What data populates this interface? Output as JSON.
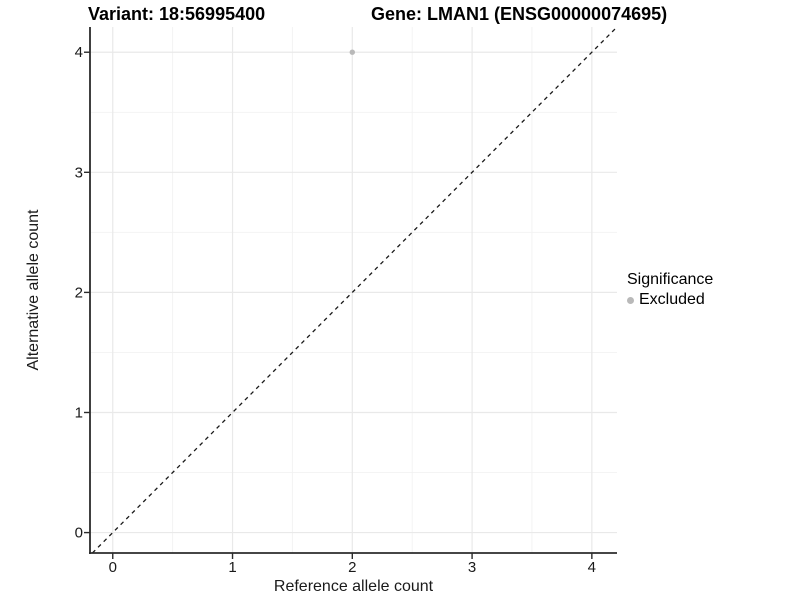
{
  "chart_data": {
    "type": "scatter",
    "title_left": "Variant: 18:56995400",
    "title_right": "Gene: LMAN1 (ENSG00000074695)",
    "xlabel": "Reference allele count",
    "ylabel": "Alternative allele count",
    "xlim": [
      -0.19,
      4.21
    ],
    "ylim": [
      -0.17,
      4.21
    ],
    "x_ticks": [
      0,
      1,
      2,
      3,
      4
    ],
    "y_ticks": [
      0,
      1,
      2,
      3,
      4
    ],
    "x_minor_ticks": [
      0.5,
      1.5,
      2.5,
      3.5
    ],
    "y_minor_ticks": [
      0.5,
      1.5,
      2.5,
      3.5
    ],
    "grid": true,
    "points": [
      {
        "x": 2,
        "y": 4,
        "significance": "Excluded"
      }
    ],
    "identity_line": {
      "slope": 1,
      "intercept": 0,
      "style": "dashed"
    },
    "legend": {
      "title": "Significance",
      "position": "right",
      "items": [
        {
          "label": "Excluded",
          "color": "#b9b9b9"
        }
      ]
    },
    "colors": {
      "excluded_point": "#b9b9b9",
      "gridline_major": "#e9e9e9",
      "gridline_minor": "#f2f2f2",
      "axis_line": "#2b2b2b",
      "identity_line": "#1a1a1a",
      "background": "#ffffff"
    }
  }
}
